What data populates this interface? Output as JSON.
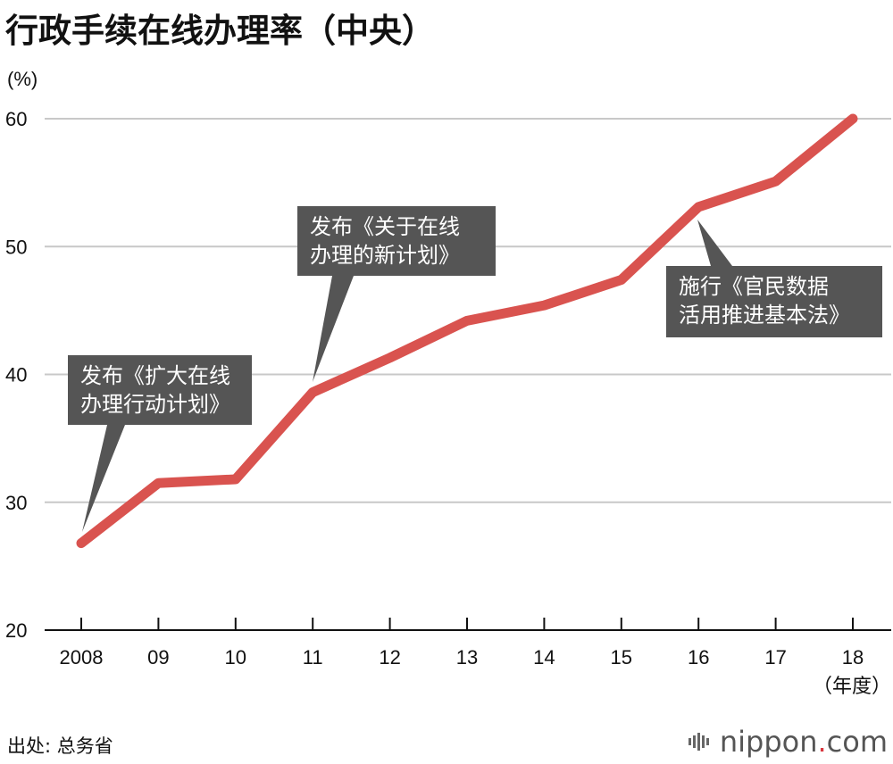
{
  "title": "行政手续在线办理率（中央）",
  "chart_data": {
    "type": "line",
    "title": "行政手续在线办理率（中央）",
    "ylabel": "(%)",
    "xlabel": "（年度）",
    "ylim": [
      20,
      60
    ],
    "yticks": [
      20,
      30,
      40,
      50,
      60
    ],
    "categories": [
      "2008",
      "09",
      "10",
      "11",
      "12",
      "13",
      "14",
      "15",
      "16",
      "17",
      "18"
    ],
    "series": [
      {
        "values": [
          26.8,
          31.5,
          31.8,
          38.6,
          41.3,
          44.2,
          45.4,
          47.4,
          53.1,
          55.1,
          60.0
        ]
      }
    ],
    "line_color": "#d9534f",
    "grid": true,
    "annotations": [
      {
        "lines": [
          "发布《扩大在线",
          "办理行动计划》"
        ],
        "category": "2008"
      },
      {
        "lines": [
          "发布《关于在线",
          "办理的新计划》"
        ],
        "category": "11"
      },
      {
        "lines": [
          "施行《官民数据",
          "活用推进基本法》"
        ],
        "category": "16"
      }
    ]
  },
  "source": "出处: 总务省",
  "brand": {
    "name": "nippon",
    "dot": ".",
    "suffix": "com"
  }
}
